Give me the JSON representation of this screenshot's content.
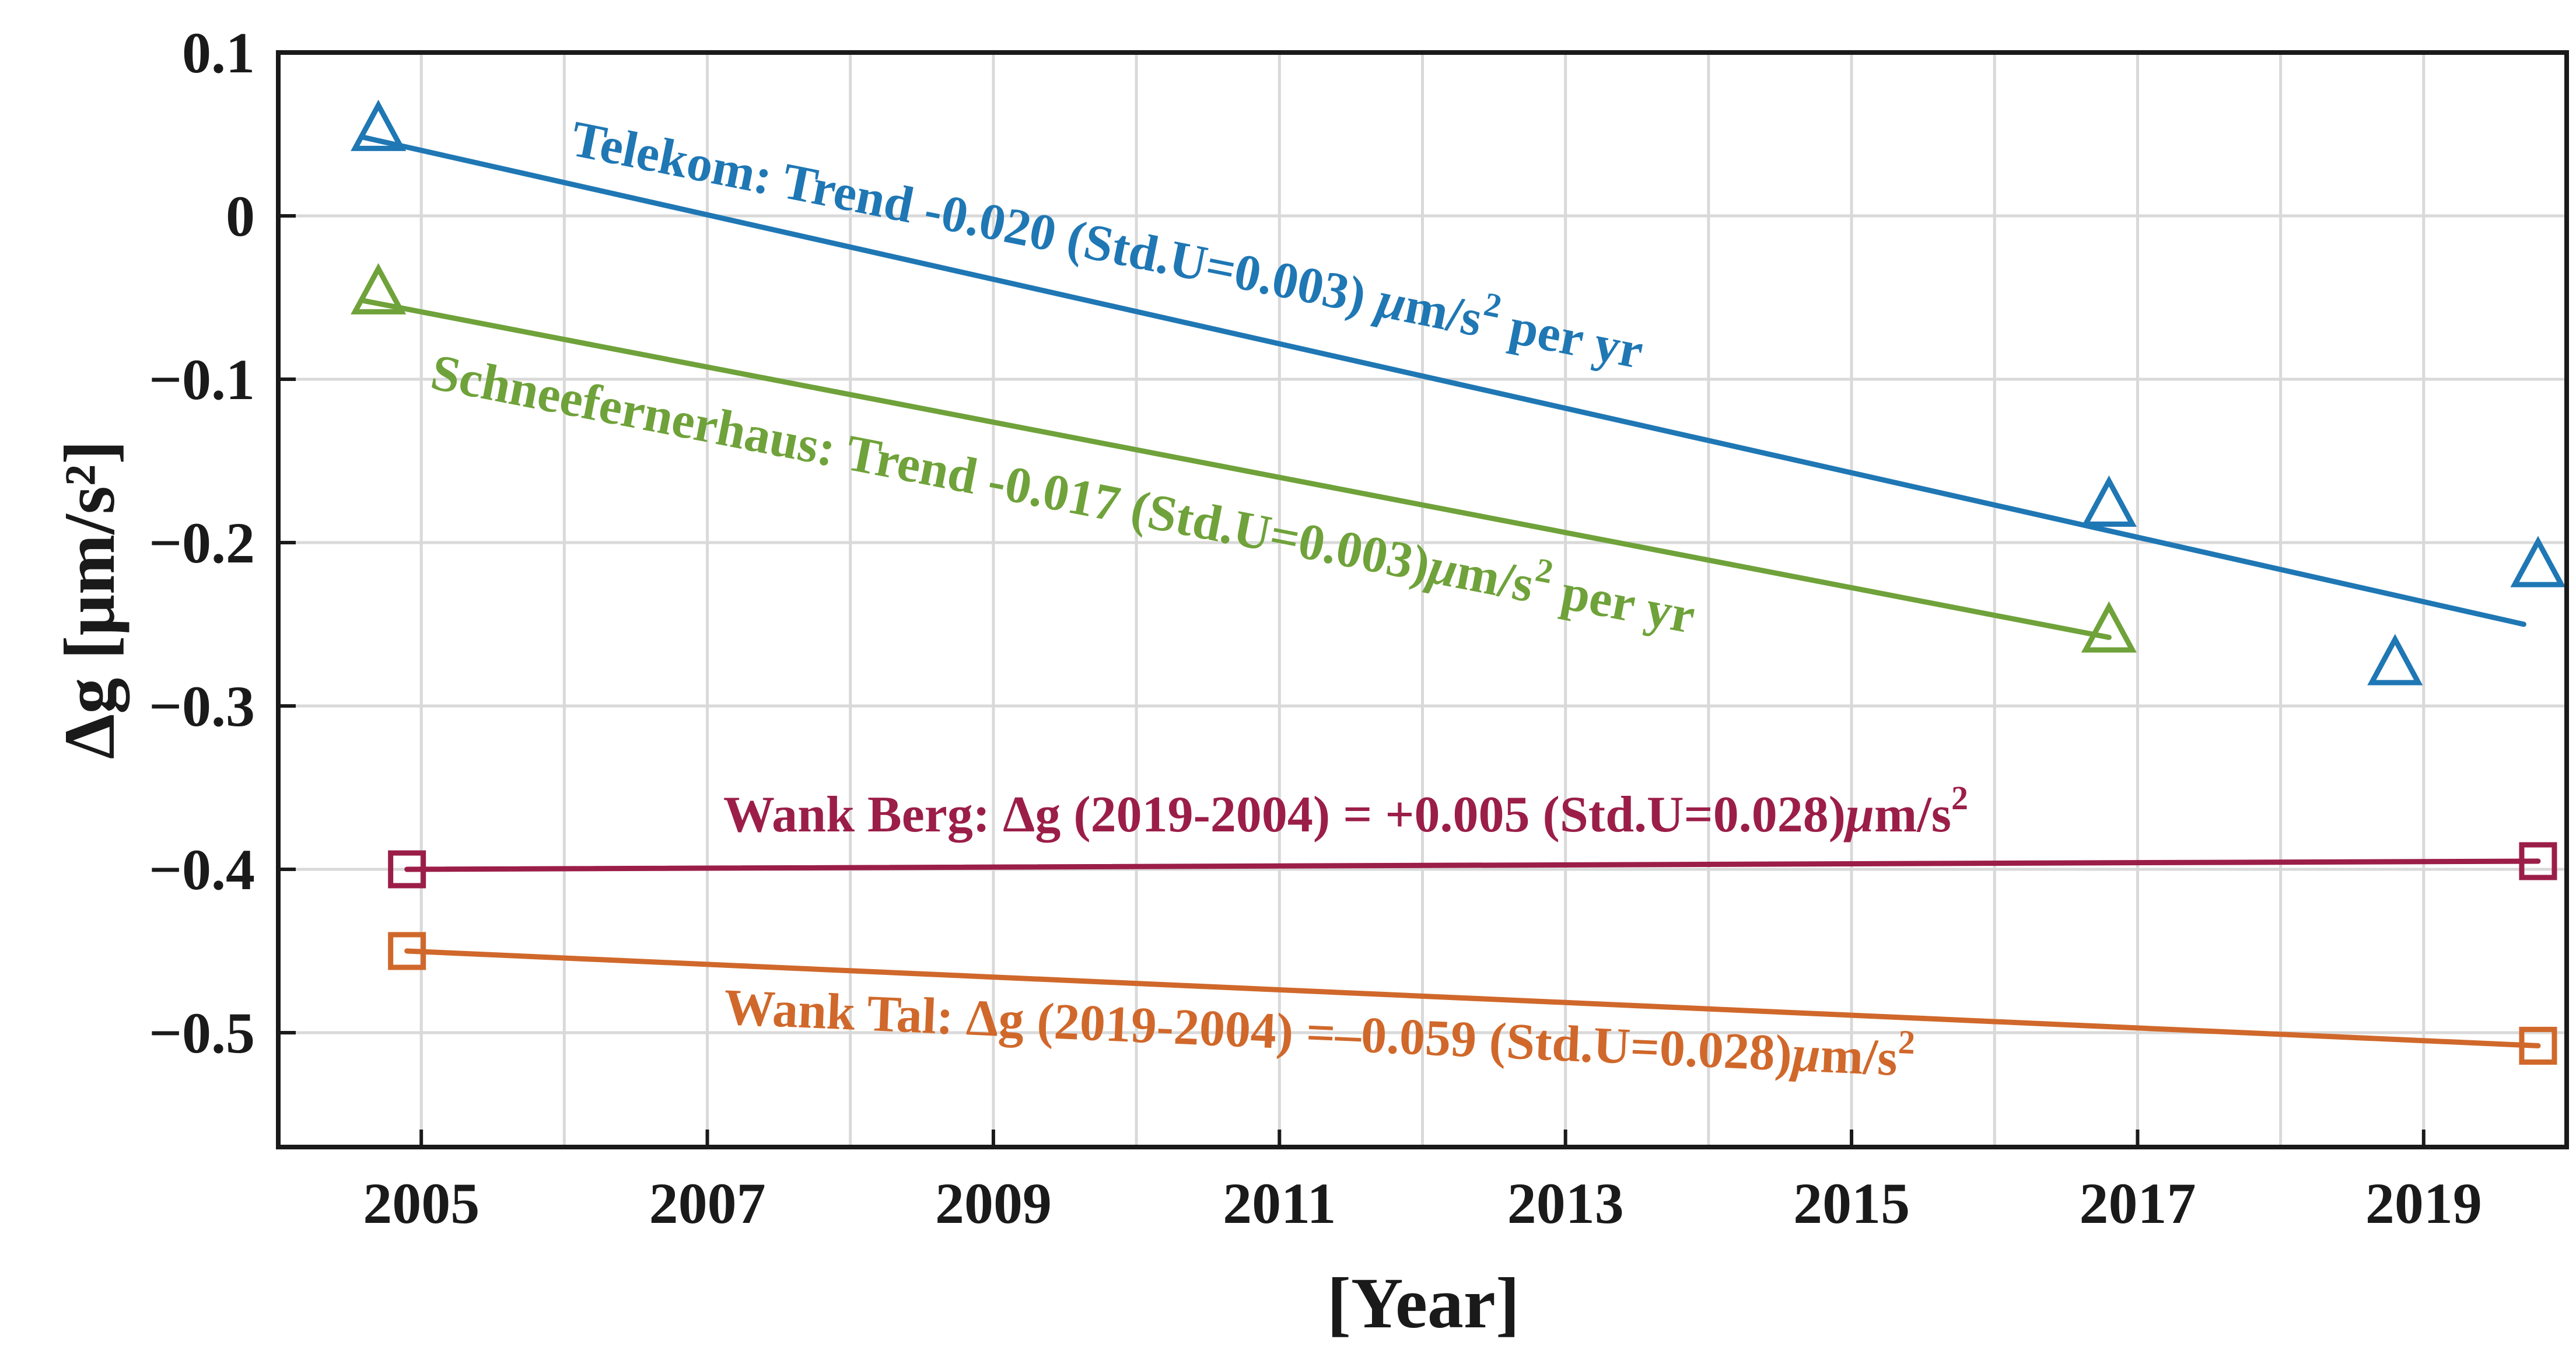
{
  "chart_data": {
    "type": "scatter",
    "title": "",
    "xlabel": "[Year]",
    "ylabel": "Δg [μm/s²]",
    "xlim": [
      2004,
      2020
    ],
    "ylim": [
      -0.57,
      0.1
    ],
    "grid": true,
    "xticks": [
      {
        "value": 2005,
        "label": "2005"
      },
      {
        "value": 2007,
        "label": "2007"
      },
      {
        "value": 2009,
        "label": "2009"
      },
      {
        "value": 2011,
        "label": "2011"
      },
      {
        "value": 2013,
        "label": "2013"
      },
      {
        "value": 2015,
        "label": "2015"
      },
      {
        "value": 2017,
        "label": "2017"
      },
      {
        "value": 2019,
        "label": "2019"
      }
    ],
    "yticks": [
      {
        "value": 0.1,
        "label": "0.1"
      },
      {
        "value": 0.0,
        "label": "0"
      },
      {
        "value": -0.1,
        "label": "−0.1"
      },
      {
        "value": -0.2,
        "label": "−0.2"
      },
      {
        "value": -0.3,
        "label": "−0.3"
      },
      {
        "value": -0.4,
        "label": "−0.4"
      },
      {
        "value": -0.5,
        "label": "−0.5"
      }
    ],
    "series": [
      {
        "name": "Telekom",
        "color": "#1f77b4",
        "marker": "triangle",
        "points": [
          {
            "x": 2004.7,
            "y": 0.052
          },
          {
            "x": 2016.8,
            "y": -0.178
          },
          {
            "x": 2018.8,
            "y": -0.275
          },
          {
            "x": 2019.8,
            "y": -0.215
          }
        ],
        "trend": [
          {
            "x": 2004.6,
            "y": 0.048
          },
          {
            "x": 2019.7,
            "y": -0.25
          }
        ],
        "annotation": {
          "main": "Telekom: Trend -0.020 (Std.U=0.003) ",
          "mu": "μ",
          "unit": "m/s",
          "sup": "2",
          "tail": " per yr"
        }
      },
      {
        "name": "Schneefernerhaus",
        "color": "#6fa23a",
        "marker": "triangle",
        "points": [
          {
            "x": 2004.7,
            "y": -0.048
          },
          {
            "x": 2016.8,
            "y": -0.255
          }
        ],
        "trend": [
          {
            "x": 2004.6,
            "y": -0.052
          },
          {
            "x": 2016.8,
            "y": -0.258
          }
        ],
        "annotation": {
          "main": "Schneefernerhaus: Trend -0.017 (Std.U=0.003)",
          "mu": "μ",
          "unit": "m/s",
          "sup": "2",
          "tail": " per yr"
        }
      },
      {
        "name": "Wank Berg",
        "color": "#9b1e48",
        "marker": "square",
        "points": [
          {
            "x": 2004.9,
            "y": -0.4
          },
          {
            "x": 2019.8,
            "y": -0.395
          }
        ],
        "trend": [
          {
            "x": 2004.9,
            "y": -0.4
          },
          {
            "x": 2019.8,
            "y": -0.395
          }
        ],
        "annotation": {
          "main": "Wank Berg: Δg (2019-2004) = +0.005 (Std.U=0.028)",
          "mu": "μ",
          "unit": "m/s",
          "sup": "2",
          "tail": ""
        }
      },
      {
        "name": "Wank Tal",
        "color": "#d0682b",
        "marker": "square",
        "points": [
          {
            "x": 2004.9,
            "y": -0.45
          },
          {
            "x": 2019.8,
            "y": -0.508
          }
        ],
        "trend": [
          {
            "x": 2004.9,
            "y": -0.45
          },
          {
            "x": 2019.8,
            "y": -0.508
          }
        ],
        "annotation": {
          "main": "Wank Tal: Δg (2019-2004) =–0.059 (Std.U=0.028)",
          "mu": "μ",
          "unit": "m/s",
          "sup": "2",
          "tail": ""
        }
      }
    ]
  }
}
